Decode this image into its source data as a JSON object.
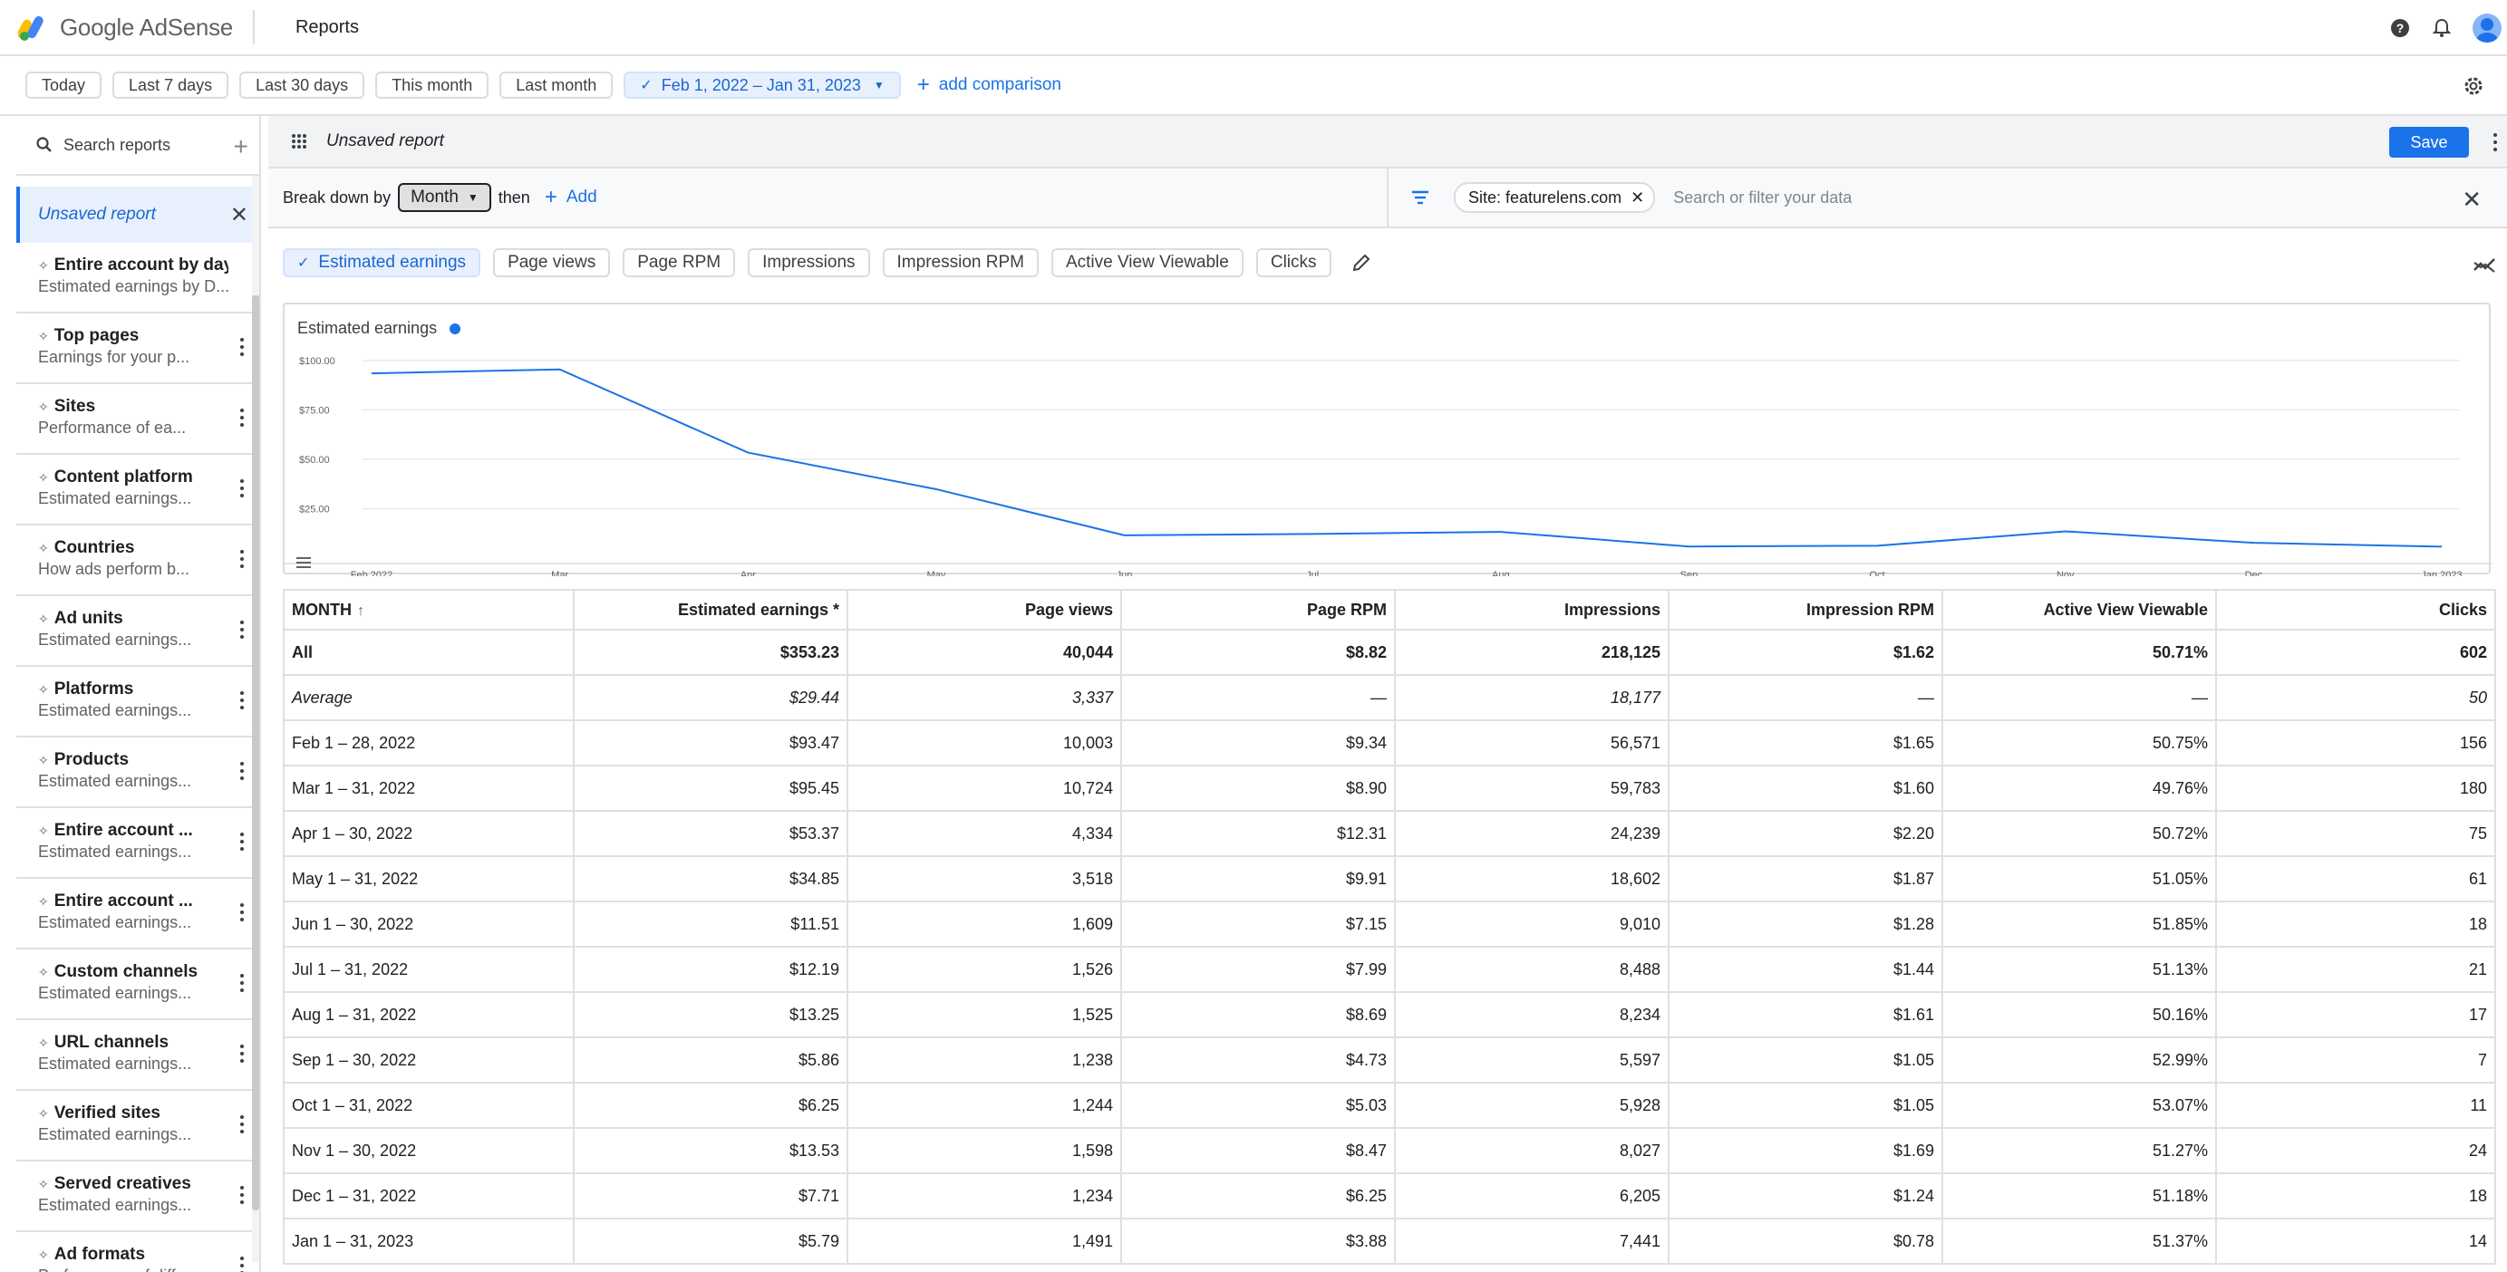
{
  "app": {
    "brand": "Google AdSense",
    "page_title": "Reports"
  },
  "date_bar": {
    "presets": [
      "Today",
      "Last 7 days",
      "Last 30 days",
      "This month",
      "Last month"
    ],
    "selected_range": "Feb 1, 2022 – Jan 31, 2023",
    "add_comparison": "add comparison"
  },
  "sidebar": {
    "search_label": "Search reports",
    "unsaved_label": "Unsaved report",
    "items": [
      {
        "title": "Entire account by day",
        "desc": "Estimated earnings by D..."
      },
      {
        "title": "Top pages",
        "desc": "Earnings for your p..."
      },
      {
        "title": "Sites",
        "desc": "Performance of ea..."
      },
      {
        "title": "Content platform",
        "desc": "Estimated earnings..."
      },
      {
        "title": "Countries",
        "desc": "How ads perform b..."
      },
      {
        "title": "Ad units",
        "desc": "Estimated earnings..."
      },
      {
        "title": "Platforms",
        "desc": "Estimated earnings..."
      },
      {
        "title": "Products",
        "desc": "Estimated earnings..."
      },
      {
        "title": "Entire account ...",
        "desc": "Estimated earnings..."
      },
      {
        "title": "Entire account ...",
        "desc": "Estimated earnings..."
      },
      {
        "title": "Custom channels",
        "desc": "Estimated earnings..."
      },
      {
        "title": "URL channels",
        "desc": "Estimated earnings..."
      },
      {
        "title": "Verified sites",
        "desc": "Estimated earnings..."
      },
      {
        "title": "Served creatives",
        "desc": "Estimated earnings..."
      },
      {
        "title": "Ad formats",
        "desc": "Performance of diff..."
      }
    ]
  },
  "report": {
    "name": "Unsaved report",
    "save_label": "Save",
    "breakdown_label": "Break down by",
    "breakdown_value": "Month",
    "then_label": "then",
    "add_label": "Add",
    "filter_chip": "Site: featurelens.com",
    "filter_placeholder": "Search or filter your data",
    "metrics": [
      "Estimated earnings",
      "Page views",
      "Page RPM",
      "Impressions",
      "Impression RPM",
      "Active View Viewable",
      "Clicks"
    ],
    "active_metric": "Estimated earnings"
  },
  "chart_data": {
    "type": "line",
    "title": "Estimated earnings",
    "x": [
      "Feb 2022",
      "Mar",
      "Apr",
      "May",
      "Jun",
      "Jul",
      "Aug",
      "Sep",
      "Oct",
      "Nov",
      "Dec",
      "Jan 2023"
    ],
    "series": [
      {
        "name": "Estimated earnings",
        "values": [
          93.47,
          95.45,
          53.37,
          34.85,
          11.51,
          12.19,
          13.25,
          5.86,
          6.25,
          13.53,
          7.71,
          5.79
        ]
      }
    ],
    "yticks": [
      "$25.00",
      "$50.00",
      "$75.00",
      "$100.00"
    ],
    "ylim": [
      0,
      110
    ],
    "grid": true,
    "color": "#1a73e8"
  },
  "table": {
    "headers": [
      "MONTH",
      "Estimated earnings *",
      "Page views",
      "Page RPM",
      "Impressions",
      "Impression RPM",
      "Active View Viewable",
      "Clicks"
    ],
    "all_row": [
      "All",
      "$353.23",
      "40,044",
      "$8.82",
      "218,125",
      "$1.62",
      "50.71%",
      "602"
    ],
    "avg_row": [
      "Average",
      "$29.44",
      "3,337",
      "—",
      "18,177",
      "—",
      "—",
      "50"
    ],
    "rows": [
      [
        "Feb 1 – 28, 2022",
        "$93.47",
        "10,003",
        "$9.34",
        "56,571",
        "$1.65",
        "50.75%",
        "156"
      ],
      [
        "Mar 1 – 31, 2022",
        "$95.45",
        "10,724",
        "$8.90",
        "59,783",
        "$1.60",
        "49.76%",
        "180"
      ],
      [
        "Apr 1 – 30, 2022",
        "$53.37",
        "4,334",
        "$12.31",
        "24,239",
        "$2.20",
        "50.72%",
        "75"
      ],
      [
        "May 1 – 31, 2022",
        "$34.85",
        "3,518",
        "$9.91",
        "18,602",
        "$1.87",
        "51.05%",
        "61"
      ],
      [
        "Jun 1 – 30, 2022",
        "$11.51",
        "1,609",
        "$7.15",
        "9,010",
        "$1.28",
        "51.85%",
        "18"
      ],
      [
        "Jul 1 – 31, 2022",
        "$12.19",
        "1,526",
        "$7.99",
        "8,488",
        "$1.44",
        "51.13%",
        "21"
      ],
      [
        "Aug 1 – 31, 2022",
        "$13.25",
        "1,525",
        "$8.69",
        "8,234",
        "$1.61",
        "50.16%",
        "17"
      ],
      [
        "Sep 1 – 30, 2022",
        "$5.86",
        "1,238",
        "$4.73",
        "5,597",
        "$1.05",
        "52.99%",
        "7"
      ],
      [
        "Oct 1 – 31, 2022",
        "$6.25",
        "1,244",
        "$5.03",
        "5,928",
        "$1.05",
        "53.07%",
        "11"
      ],
      [
        "Nov 1 – 30, 2022",
        "$13.53",
        "1,598",
        "$8.47",
        "8,027",
        "$1.69",
        "51.27%",
        "24"
      ],
      [
        "Dec 1 – 31, 2022",
        "$7.71",
        "1,234",
        "$6.25",
        "6,205",
        "$1.24",
        "51.18%",
        "18"
      ],
      [
        "Jan 1 – 31, 2023",
        "$5.79",
        "1,491",
        "$3.88",
        "7,441",
        "$0.78",
        "51.37%",
        "14"
      ]
    ]
  }
}
